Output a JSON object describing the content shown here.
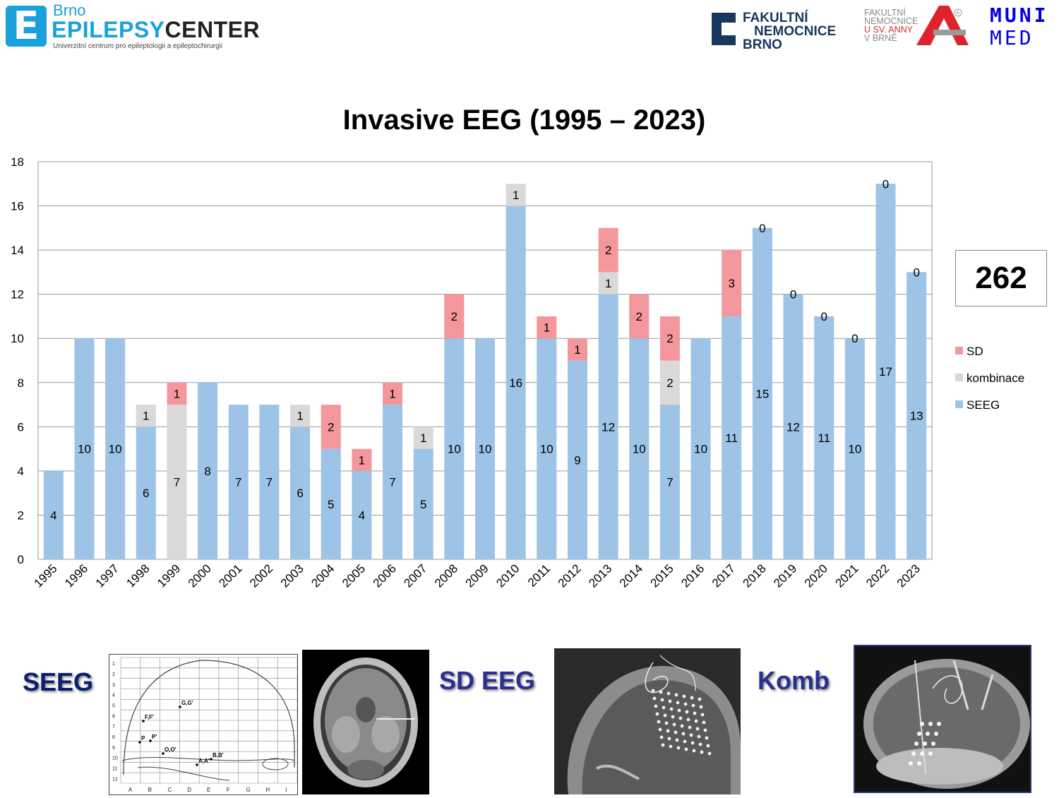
{
  "header": {
    "ec_city": "Brno",
    "ec_name_a": "EPILEPSY",
    "ec_name_b": "CENTER",
    "ec_subtitle": "Univerzitní centrum pro epileptologii a epileptochirurgii",
    "fn_lines": [
      "FAKULTNÍ",
      "NEMOCNICE",
      "BRNO"
    ],
    "fa_lines": [
      "FAKULTNÍ",
      "NEMOCNICE",
      "U SV. ANNY",
      "V BRNĚ"
    ],
    "muni_lines": [
      "MUNI",
      "MED"
    ]
  },
  "total": "262",
  "chart_data": {
    "type": "bar",
    "stacked": true,
    "title": "Invasive EEG (1995 – 2023)",
    "categories": [
      "1995",
      "1996",
      "1997",
      "1998",
      "1999",
      "2000",
      "2001",
      "2002",
      "2003",
      "2004",
      "2005",
      "2006",
      "2007",
      "2008",
      "2009",
      "2010",
      "2011",
      "2012",
      "2013",
      "2014",
      "2015",
      "2016",
      "2017",
      "2018",
      "2019",
      "2020",
      "2021",
      "2022",
      "2023"
    ],
    "series": [
      {
        "name": "SEEG",
        "color": "#9dc3e6",
        "values": [
          4,
          10,
          10,
          6,
          0,
          8,
          7,
          7,
          6,
          5,
          4,
          7,
          5,
          10,
          10,
          16,
          10,
          9,
          12,
          10,
          7,
          10,
          11,
          15,
          12,
          11,
          10,
          17,
          13
        ]
      },
      {
        "name": "kombinace",
        "color": "#d9d9d9",
        "values": [
          0,
          0,
          0,
          1,
          7,
          0,
          0,
          0,
          1,
          0,
          0,
          0,
          1,
          0,
          0,
          1,
          0,
          0,
          1,
          0,
          2,
          0,
          0,
          0,
          0,
          0,
          0,
          0,
          0
        ]
      },
      {
        "name": "SD",
        "color": "#f4979c",
        "values": [
          0,
          0,
          0,
          0,
          1,
          0,
          0,
          0,
          0,
          2,
          1,
          1,
          0,
          2,
          0,
          0,
          1,
          1,
          2,
          2,
          2,
          0,
          3,
          0,
          0,
          0,
          0,
          0,
          0
        ]
      }
    ],
    "top_labels": [
      "",
      "",
      "",
      "",
      "",
      "",
      "",
      "",
      "",
      "",
      "",
      "",
      "",
      "",
      "",
      "",
      "",
      "",
      "",
      "",
      "",
      "",
      "",
      "0",
      "0",
      "0",
      "0",
      "0",
      "0"
    ],
    "ylim": [
      0,
      18
    ],
    "yticks": [
      0,
      2,
      4,
      6,
      8,
      10,
      12,
      14,
      16,
      18
    ],
    "grid": true,
    "legend_position": "right",
    "legend": [
      "SD",
      "kombinace",
      "SEEG"
    ]
  },
  "illustrations": {
    "seeg_label": "SEEG",
    "sd_label": "SD EEG",
    "komb_label": "Komb",
    "grid_row_labels": [
      "1",
      "2",
      "3",
      "4",
      "5",
      "6",
      "7",
      "8",
      "9",
      "10",
      "11",
      "12"
    ],
    "grid_col_labels": [
      "A",
      "B",
      "C",
      "D",
      "E",
      "F",
      "G",
      "H",
      "I"
    ],
    "grid_points": [
      "G,G'",
      "F,F'",
      "P",
      "P'",
      "O,O'",
      "B,B'",
      "A,A'"
    ]
  }
}
